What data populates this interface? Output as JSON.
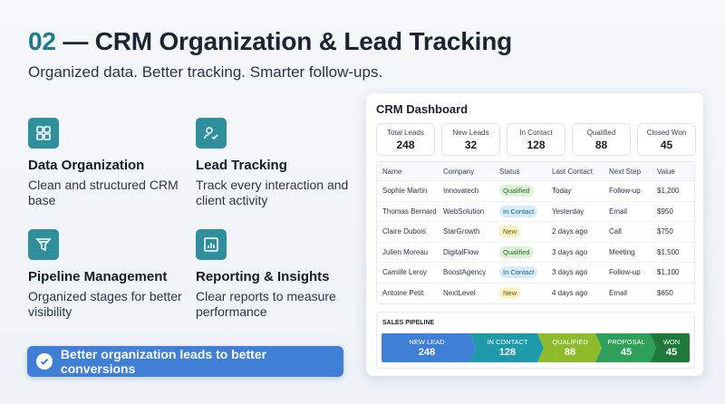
{
  "header": {
    "number": "02",
    "title": " — CRM Organization & Lead Tracking",
    "subtitle": "Organized data. Better tracking. Smarter follow-ups."
  },
  "features": [
    {
      "icon": "grid-icon",
      "title": "Data Organization",
      "desc": "Clean and structured CRM base"
    },
    {
      "icon": "user-check-icon",
      "title": "Lead Tracking",
      "desc": "Track every interaction and client activity"
    },
    {
      "icon": "funnel-icon",
      "title": "Pipeline Management",
      "desc": "Organized stages for better visibility"
    },
    {
      "icon": "bar-chart-icon",
      "title": "Reporting & Insights",
      "desc": "Clear reports to measure performance"
    }
  ],
  "cta": {
    "label": "Better organization leads to better conversions",
    "icon": "check-circle-icon"
  },
  "dashboard": {
    "title": "CRM Dashboard",
    "stats": [
      {
        "label": "Total Leads",
        "value": "248"
      },
      {
        "label": "New Leads",
        "value": "32"
      },
      {
        "label": "In Contact",
        "value": "128"
      },
      {
        "label": "Qualified",
        "value": "88"
      },
      {
        "label": "Closed Won",
        "value": "45"
      }
    ],
    "columns": [
      "Name",
      "Company",
      "Status",
      "Last Contact",
      "Next Step",
      "Value"
    ],
    "rows": [
      {
        "name": "Sophie Martin",
        "company": "Innovatech",
        "status": "Qualified",
        "last": "Today",
        "next": "Follow-up",
        "value": "$1,200"
      },
      {
        "name": "Thomas Bernard",
        "company": "WebSolution",
        "status": "In Contact",
        "last": "Yesterday",
        "next": "Email",
        "value": "$950"
      },
      {
        "name": "Claire Dubois",
        "company": "StarGrowth",
        "status": "New",
        "last": "2 days ago",
        "next": "Call",
        "value": "$750"
      },
      {
        "name": "Julien Moreau",
        "company": "DigitalFlow",
        "status": "Qualified",
        "last": "3 days ago",
        "next": "Meeting",
        "value": "$1,500"
      },
      {
        "name": "Camille Leroy",
        "company": "BoostAgency",
        "status": "In Contact",
        "last": "3 days ago",
        "next": "Follow-up",
        "value": "$1,100"
      },
      {
        "name": "Antoine Petit",
        "company": "NextLevel",
        "status": "New",
        "last": "4 days ago",
        "next": "Email",
        "value": "$650"
      }
    ],
    "pipeline": {
      "title": "SALES PIPELINE",
      "stages": [
        {
          "label": "NEW LEAD",
          "value": "248",
          "color": "#3f7fd6"
        },
        {
          "label": "IN CONTACT",
          "value": "128",
          "color": "#1f9aa8"
        },
        {
          "label": "QUALIFIED",
          "value": "88",
          "color": "#8dbb2c"
        },
        {
          "label": "PROPOSAL",
          "value": "45",
          "color": "#2fa05a"
        },
        {
          "label": "WON",
          "value": "45",
          "color": "#1f7a3a"
        }
      ]
    }
  }
}
